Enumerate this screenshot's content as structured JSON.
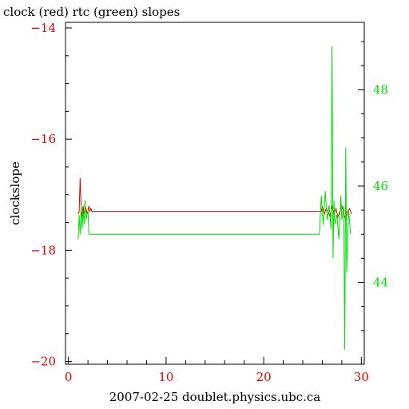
{
  "chart_data": {
    "type": "line",
    "title": "clock (red) rtc (green) slopes",
    "xlabel": "2007-02-25 doublet.physics.ubc.ca",
    "ylabel": "clockslope",
    "xlim": [
      -0.3,
      30.3
    ],
    "ylim_left": [
      -20.05,
      -13.9
    ],
    "ylim_right": [
      42.3,
      49.4
    ],
    "x_ticks": [
      "0",
      "10",
      "20",
      "30"
    ],
    "left_ticks": [
      "-14",
      "-16",
      "-18",
      "-20"
    ],
    "right_ticks": [
      "44",
      "46",
      "48"
    ],
    "grid": false,
    "colors": {
      "clock": "#e00000",
      "rtc": "#00e000",
      "axes": "#000000"
    },
    "series": [
      {
        "name": "clock",
        "axis": "left",
        "x": [
          1.0,
          1.1,
          1.2,
          1.3,
          1.4,
          1.5,
          1.6,
          1.7,
          1.8,
          1.9,
          2.0,
          2.1,
          2.2,
          2.3,
          2.4,
          2.5,
          2.6,
          2.7,
          2.8,
          2.9,
          3.0,
          25.9,
          26.0,
          26.2,
          26.4,
          26.6,
          26.8,
          27.0,
          27.1,
          27.2,
          27.4,
          27.6,
          27.8,
          28.0,
          28.2,
          28.4,
          28.6,
          28.8,
          29.0
        ],
        "y": [
          -17.35,
          -17.3,
          -16.7,
          -17.25,
          -17.4,
          -17.2,
          -17.35,
          -17.3,
          -17.25,
          -17.35,
          -17.3,
          -17.2,
          -17.3,
          -17.25,
          -17.3,
          -17.3,
          -17.3,
          -17.3,
          -17.3,
          -17.3,
          -17.3,
          -17.3,
          -17.2,
          -17.35,
          -17.25,
          -17.3,
          -17.4,
          -17.2,
          -17.3,
          -17.35,
          -17.25,
          -17.4,
          -17.3,
          -17.2,
          -17.35,
          -17.45,
          -17.3,
          -17.25,
          -17.35
        ]
      },
      {
        "name": "rtc",
        "axis": "right",
        "x": [
          1.0,
          1.1,
          1.2,
          1.3,
          1.4,
          1.5,
          1.6,
          1.7,
          1.8,
          1.9,
          2.0,
          2.1,
          2.2,
          2.3,
          2.4,
          2.5,
          2.6,
          2.7,
          2.8,
          2.9,
          3.0,
          25.7,
          25.9,
          26.1,
          26.3,
          26.5,
          26.7,
          26.9,
          27.0,
          27.1,
          27.2,
          27.3,
          27.5,
          27.7,
          27.9,
          28.0,
          28.2,
          28.3,
          28.4,
          28.5,
          28.7,
          28.9
        ],
        "y": [
          44.9,
          45.4,
          45.0,
          45.6,
          45.1,
          45.5,
          45.2,
          45.7,
          45.3,
          45.4,
          45.5,
          45.0,
          45.0,
          45.0,
          45.0,
          45.0,
          45.0,
          45.0,
          45.0,
          45.0,
          45.0,
          45.0,
          45.8,
          45.2,
          45.9,
          45.3,
          45.6,
          45.1,
          48.9,
          44.5,
          45.7,
          45.2,
          45.4,
          44.9,
          45.8,
          45.3,
          45.6,
          42.6,
          46.8,
          44.2,
          45.5,
          45.0
        ]
      }
    ]
  }
}
